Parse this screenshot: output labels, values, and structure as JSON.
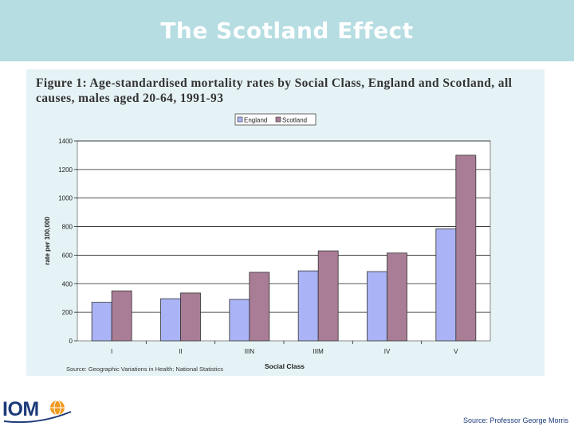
{
  "slide": {
    "title": "The Scotland Effect",
    "footer_source": "Source: Professor George Morris",
    "logo_text": "IOM"
  },
  "figure": {
    "caption": "Figure 1:  Age-standardised mortality rates by Social Class, England and Scotland, all\ncauses, males aged 20-64, 1991-93",
    "source_note": "Source: Geographic Variations in Health: National Statistics"
  },
  "colors": {
    "header_bg": "#b6dde2",
    "england": "#aab3f5",
    "scotland": "#a97d95",
    "panel_bg": "#e6f3f6"
  },
  "chart_data": {
    "type": "bar",
    "categories": [
      "I",
      "II",
      "IIIN",
      "IIIM",
      "IV",
      "V"
    ],
    "series": [
      {
        "name": "England",
        "values": [
          270,
          295,
          290,
          490,
          485,
          785
        ]
      },
      {
        "name": "Scotland",
        "values": [
          350,
          335,
          480,
          630,
          615,
          1300
        ]
      }
    ],
    "xlabel": "Social Class",
    "ylabel": "rate per 100,000",
    "ylim": [
      0,
      1400
    ],
    "yticks": [
      0,
      200,
      400,
      600,
      800,
      1000,
      1200,
      1400
    ],
    "grid": true,
    "legend": "top-center"
  }
}
